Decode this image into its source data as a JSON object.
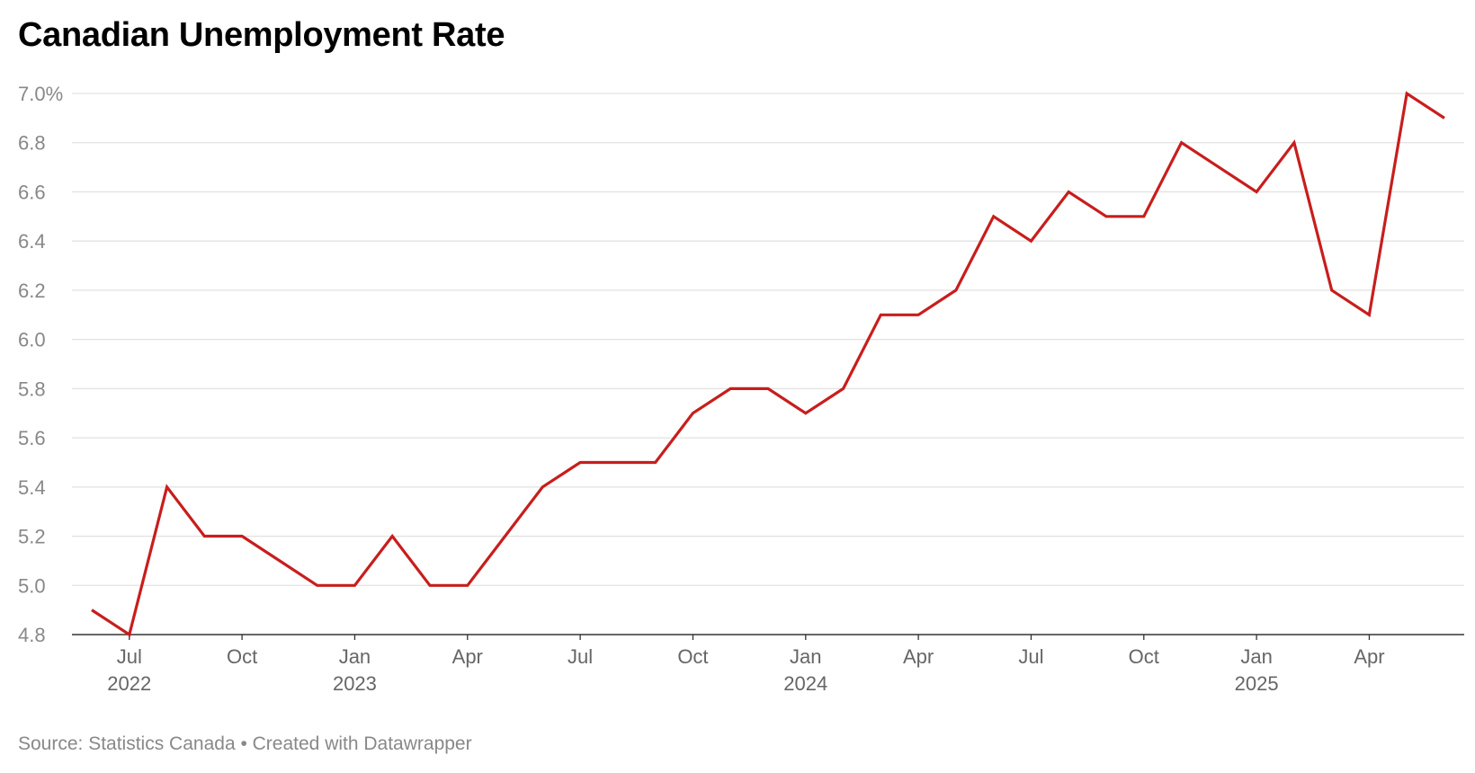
{
  "chart_data": {
    "type": "line",
    "title": "Canadian Unemployment Rate",
    "source": "Source: Statistics Canada • Created with Datawrapper",
    "ylim": [
      4.8,
      7.0
    ],
    "yticks": [
      {
        "value": 7.0,
        "label": "7.0%"
      },
      {
        "value": 6.8,
        "label": "6.8"
      },
      {
        "value": 6.6,
        "label": "6.6"
      },
      {
        "value": 6.4,
        "label": "6.4"
      },
      {
        "value": 6.2,
        "label": "6.2"
      },
      {
        "value": 6.0,
        "label": "6.0"
      },
      {
        "value": 5.8,
        "label": "5.8"
      },
      {
        "value": 5.6,
        "label": "5.6"
      },
      {
        "value": 5.4,
        "label": "5.4"
      },
      {
        "value": 5.2,
        "label": "5.2"
      },
      {
        "value": 5.0,
        "label": "5.0"
      },
      {
        "value": 4.8,
        "label": "4.8"
      }
    ],
    "xticks": [
      {
        "index": 1,
        "label": "Jul",
        "year": "2022"
      },
      {
        "index": 4,
        "label": "Oct",
        "year": ""
      },
      {
        "index": 7,
        "label": "Jan",
        "year": "2023"
      },
      {
        "index": 10,
        "label": "Apr",
        "year": ""
      },
      {
        "index": 13,
        "label": "Jul",
        "year": ""
      },
      {
        "index": 16,
        "label": "Oct",
        "year": ""
      },
      {
        "index": 19,
        "label": "Jan",
        "year": "2024"
      },
      {
        "index": 22,
        "label": "Apr",
        "year": ""
      },
      {
        "index": 25,
        "label": "Jul",
        "year": ""
      },
      {
        "index": 28,
        "label": "Oct",
        "year": ""
      },
      {
        "index": 31,
        "label": "Jan",
        "year": "2025"
      },
      {
        "index": 34,
        "label": "Apr",
        "year": ""
      }
    ],
    "x": [
      "2022-06",
      "2022-07",
      "2022-08",
      "2022-09",
      "2022-10",
      "2022-11",
      "2022-12",
      "2023-01",
      "2023-02",
      "2023-03",
      "2023-04",
      "2023-05",
      "2023-06",
      "2023-07",
      "2023-08",
      "2023-09",
      "2023-10",
      "2023-11",
      "2023-12",
      "2024-01",
      "2024-02",
      "2024-03",
      "2024-04",
      "2024-05",
      "2024-06",
      "2024-07",
      "2024-08",
      "2024-09",
      "2024-10",
      "2024-11",
      "2024-12",
      "2025-01",
      "2025-02",
      "2025-03",
      "2025-04",
      "2025-05",
      "2025-06"
    ],
    "series": [
      {
        "name": "Unemployment rate",
        "color": "#c71e1d",
        "values": [
          4.9,
          4.8,
          5.4,
          5.2,
          5.2,
          5.1,
          5.0,
          5.0,
          5.2,
          5.0,
          5.0,
          5.2,
          5.4,
          5.5,
          5.5,
          5.5,
          5.7,
          5.8,
          5.8,
          5.7,
          5.8,
          6.1,
          6.1,
          6.2,
          6.5,
          6.4,
          6.6,
          6.5,
          6.5,
          6.8,
          6.7,
          6.6,
          6.8,
          6.2,
          6.1,
          7.0,
          6.9
        ]
      }
    ],
    "colors": {
      "grid": "#e2e2e2",
      "axis": "#333333",
      "tick_text": "#888888",
      "x_text": "#666666",
      "title": "#000000"
    }
  }
}
